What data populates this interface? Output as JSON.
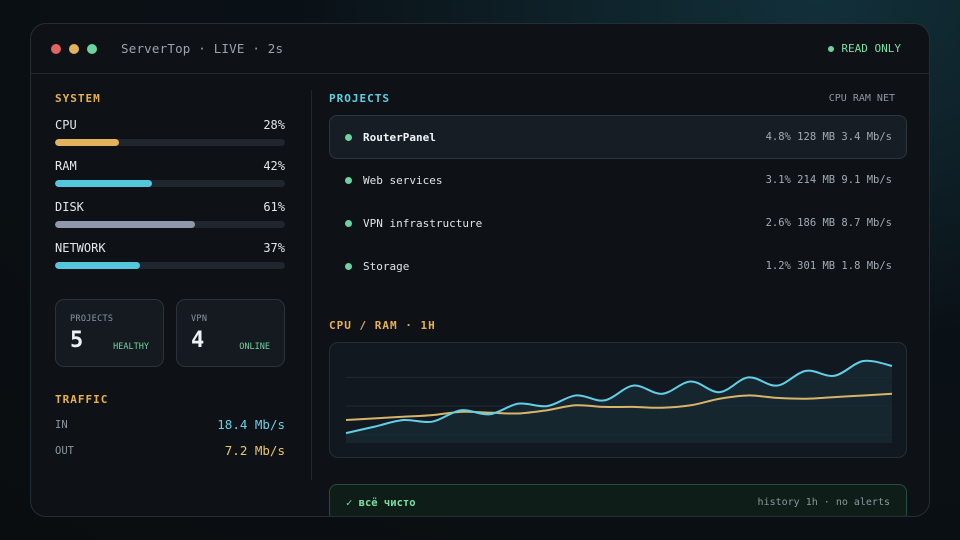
{
  "window": {
    "title": "ServerTop · LIVE · 2s",
    "readonly_label": "READ ONLY"
  },
  "system": {
    "label": "SYSTEM",
    "metrics": [
      {
        "name": "CPU",
        "value": "28%",
        "percent": 28,
        "color": "#e2b25c"
      },
      {
        "name": "RAM",
        "value": "42%",
        "percent": 42,
        "color": "#55c7dc"
      },
      {
        "name": "DISK",
        "value": "61%",
        "percent": 61,
        "color": "#8e9aab"
      },
      {
        "name": "NETWORK",
        "value": "37%",
        "percent": 37,
        "color": "#55c7dc"
      }
    ]
  },
  "cards": [
    {
      "label": "PROJECTS",
      "value": "5",
      "status": "HEALTHY"
    },
    {
      "label": "VPN",
      "value": "4",
      "status": "ONLINE"
    }
  ],
  "traffic": {
    "label": "TRAFFIC",
    "in_label": "IN",
    "in_value": "18.4 Mb/s",
    "out_label": "OUT",
    "out_value": "7.2 Mb/s",
    "in_color": "#6ccfe4",
    "out_color": "#e8c86a"
  },
  "projects": {
    "label": "PROJECTS",
    "columns": "CPU RAM NET",
    "items": [
      {
        "name": "RouterPanel",
        "stats": "4.8% 128 MB 3.4 Mb/s",
        "active": true
      },
      {
        "name": "Web services",
        "stats": "3.1% 214 MB 9.1 Mb/s",
        "active": false
      },
      {
        "name": "VPN infrastructure",
        "stats": "2.6% 186 MB 8.7 Mb/s",
        "active": false
      },
      {
        "name": "Storage",
        "stats": "1.2% 301 MB 1.8 Mb/s",
        "active": false
      }
    ]
  },
  "chart": {
    "label": "CPU / RAM · 1H"
  },
  "chart_data": {
    "type": "line",
    "title": "CPU / RAM · 1H",
    "xlabel": "",
    "ylabel": "",
    "ylim": [
      0,
      100
    ],
    "grid": true,
    "x": [
      0,
      1,
      2,
      3,
      4,
      5,
      6,
      7,
      8,
      9,
      10,
      11,
      12,
      13,
      14,
      15,
      16,
      17,
      18,
      19
    ],
    "series": [
      {
        "color": "#63cfe6",
        "values": [
          12,
          20,
          28,
          26,
          40,
          35,
          48,
          45,
          58,
          52,
          70,
          60,
          75,
          62,
          80,
          70,
          88,
          82,
          100,
          94
        ]
      },
      {
        "color": "#d8b46a",
        "values": [
          28,
          30,
          32,
          34,
          38,
          37,
          36,
          40,
          46,
          44,
          44,
          43,
          46,
          54,
          58,
          55,
          54,
          56,
          58,
          60
        ]
      }
    ]
  },
  "footer": {
    "status": "✓ всё чисто",
    "history": "history 1h · no alerts"
  }
}
